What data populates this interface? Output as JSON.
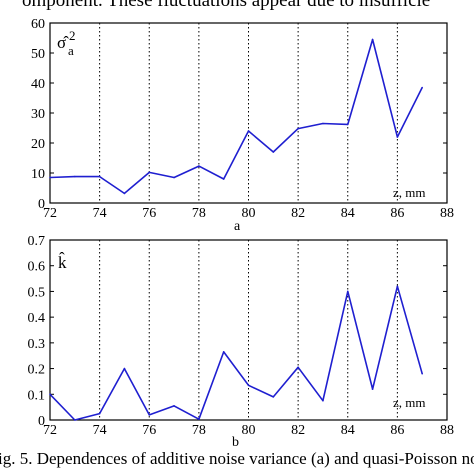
{
  "caption_top": "omponent. These fluctuations appear due to insufficie",
  "caption_bottom": "ig. 5. Dependences of additive noise variance (a) and quasi-Poisson nois",
  "chart_data": [
    {
      "type": "line",
      "panel_label": "a",
      "ylabel_main": "σ̂",
      "ylabel_sub": "a",
      "ylabel_sup": "2",
      "xunit_label": "z, mm",
      "xlim": [
        72,
        88
      ],
      "ylim": [
        0,
        60
      ],
      "xticks": [
        72,
        74,
        76,
        78,
        80,
        82,
        84,
        86,
        88
      ],
      "yticks": [
        0,
        10,
        20,
        30,
        40,
        50,
        60
      ],
      "grid": "vertical dotted",
      "series": [
        {
          "color": "#1f1fd0",
          "x": [
            72,
            73,
            74,
            75,
            76,
            77,
            78,
            79,
            80,
            81,
            82,
            83,
            84,
            85,
            86,
            87
          ],
          "y": [
            8.5,
            8.8,
            8.8,
            3.2,
            10.2,
            8.5,
            12.3,
            8.0,
            24.0,
            17.0,
            24.8,
            26.5,
            26.2,
            54.5,
            22.0,
            38.5
          ]
        }
      ]
    },
    {
      "type": "line",
      "panel_label": "b",
      "ylabel_main": "k̂",
      "xunit_label": "z, mm",
      "xlim": [
        72,
        88
      ],
      "ylim": [
        0,
        0.7
      ],
      "xticks": [
        72,
        74,
        76,
        78,
        80,
        82,
        84,
        86,
        88
      ],
      "yticks": [
        0,
        0.1,
        0.2,
        0.3,
        0.4,
        0.5,
        0.6,
        0.7
      ],
      "grid": "vertical dotted",
      "series": [
        {
          "color": "#1f1fd0",
          "x": [
            72,
            73,
            74,
            75,
            76,
            77,
            78,
            79,
            80,
            81,
            82,
            83,
            84,
            85,
            86,
            87
          ],
          "y": [
            0.1,
            0.0,
            0.025,
            0.2,
            0.02,
            0.055,
            0.003,
            0.265,
            0.135,
            0.09,
            0.205,
            0.075,
            0.5,
            0.12,
            0.52,
            0.18
          ]
        }
      ]
    }
  ]
}
